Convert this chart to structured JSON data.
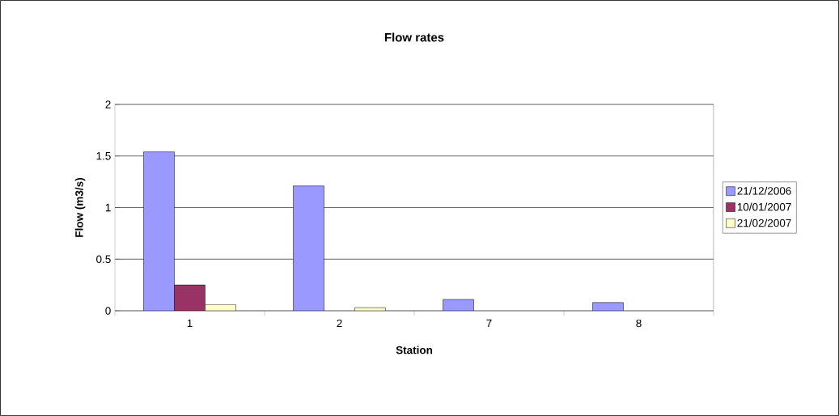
{
  "chart_data": {
    "type": "bar",
    "title": "Flow rates",
    "xlabel": "Station",
    "ylabel": "Flow (m3/s)",
    "categories": [
      "1",
      "2",
      "7",
      "8"
    ],
    "series": [
      {
        "name": "21/12/2006",
        "color": "#9999ff",
        "values": [
          1.54,
          1.21,
          0.11,
          0.08
        ]
      },
      {
        "name": "10/01/2007",
        "color": "#993366",
        "values": [
          0.25,
          null,
          null,
          null
        ]
      },
      {
        "name": "21/02/2007",
        "color": "#ffffcc",
        "values": [
          0.06,
          0.03,
          null,
          null
        ]
      }
    ],
    "ylim": [
      0,
      2
    ],
    "yticks": [
      0,
      0.5,
      1,
      1.5,
      2
    ],
    "grid": "y",
    "legend": "right"
  }
}
